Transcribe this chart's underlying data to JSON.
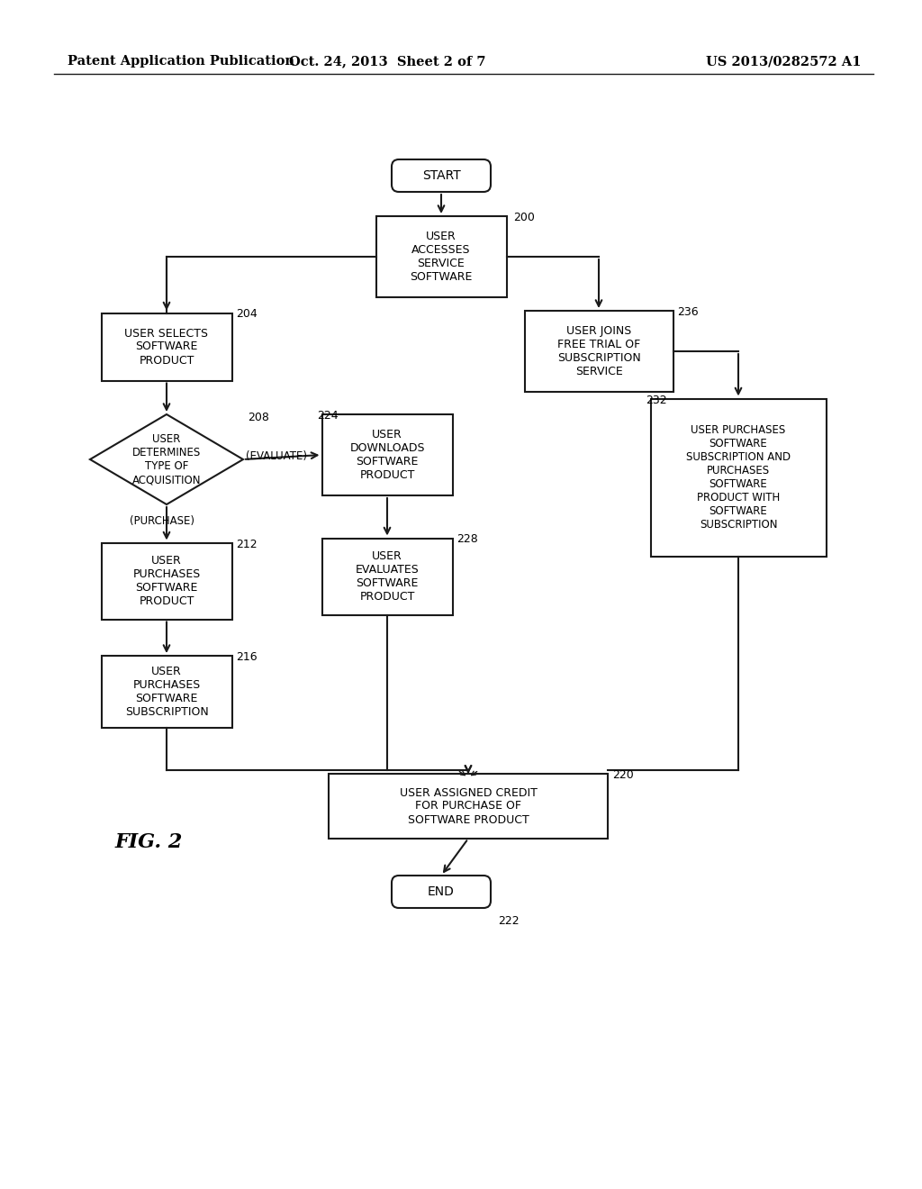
{
  "header_left": "Patent Application Publication",
  "header_mid": "Oct. 24, 2013  Sheet 2 of 7",
  "header_right": "US 2013/0282572 A1",
  "fig_label": "FIG. 2",
  "background_color": "#ffffff",
  "line_color": "#1a1a1a",
  "page_width": 10.24,
  "page_height": 13.2
}
